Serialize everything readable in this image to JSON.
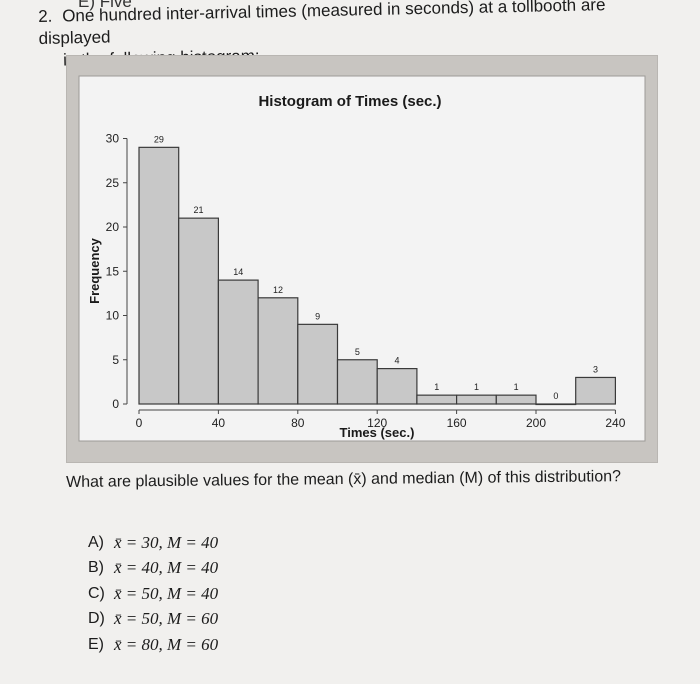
{
  "page": {
    "top_fragment": "E) Five",
    "question_number": "2.",
    "question_line1": "One hundred inter-arrival times (measured in seconds) at a tollbooth are displayed",
    "question_line2": "in the following histogram:",
    "prompt": "What are plausible values for the mean (x̄) and median (M) of this distribution?",
    "choices": [
      {
        "letter": "A)",
        "text": "x̄ = 30, M = 40"
      },
      {
        "letter": "B)",
        "text": "x̄ = 40, M = 40"
      },
      {
        "letter": "C)",
        "text": "x̄ = 50, M = 40"
      },
      {
        "letter": "D)",
        "text": "x̄ = 50, M = 60"
      },
      {
        "letter": "E)",
        "text": "x̄ = 80, M = 60"
      }
    ]
  },
  "chart_data": {
    "type": "bar",
    "title": "Histogram of Times (sec.)",
    "xlabel": "Times (sec.)",
    "ylabel": "Frequency",
    "bin_edges": [
      0,
      20,
      40,
      60,
      80,
      100,
      120,
      140,
      160,
      180,
      200,
      220,
      240
    ],
    "values": [
      29,
      21,
      14,
      12,
      9,
      5,
      4,
      1,
      1,
      1,
      0,
      3
    ],
    "x_ticks": [
      0,
      40,
      80,
      120,
      160,
      200,
      240
    ],
    "y_ticks": [
      0,
      5,
      10,
      15,
      20,
      25,
      30
    ],
    "xlim": [
      0,
      240
    ],
    "ylim": [
      0,
      31
    ],
    "grid": false,
    "colors": {
      "bar_fill": "#c8c8c8",
      "bar_stroke": "#3a3a3a",
      "frame": "#c8c5c1",
      "plot_bg": "#f3f3f3"
    }
  }
}
